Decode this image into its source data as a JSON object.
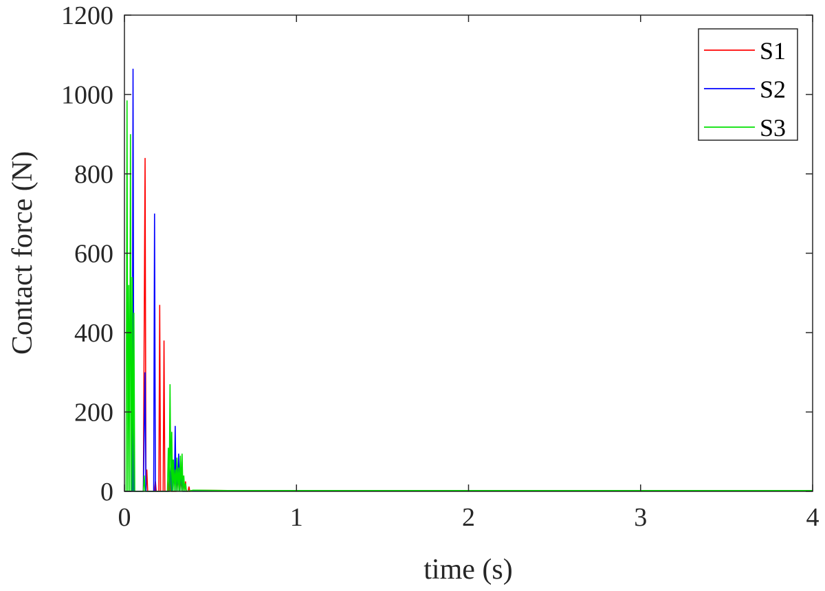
{
  "chart_data": {
    "type": "line",
    "title": "",
    "xlabel": "time (s)",
    "ylabel": "Contact force (N)",
    "xlim": [
      0,
      4
    ],
    "ylim": [
      0,
      1200
    ],
    "xticks": [
      0,
      1,
      2,
      3,
      4
    ],
    "yticks": [
      0,
      200,
      400,
      600,
      800,
      1000,
      1200
    ],
    "xtick_labels": [
      "0",
      "1",
      "2",
      "3",
      "4"
    ],
    "ytick_labels": [
      "0",
      "200",
      "400",
      "600",
      "800",
      "1000",
      "1200"
    ],
    "grid": false,
    "legend_position": "top-right",
    "series": [
      {
        "name": "S1",
        "color": "#ff0000",
        "x": [
          0,
          0.11,
          0.12,
          0.125,
          0.13,
          0.135,
          0.14,
          0.175,
          0.18,
          0.185,
          0.2,
          0.205,
          0.21,
          0.215,
          0.225,
          0.23,
          0.235,
          0.24,
          0.255,
          0.26,
          0.265,
          0.27,
          0.275,
          0.28,
          0.3,
          0.305,
          0.31,
          0.315,
          0.32,
          0.325,
          0.33,
          0.335,
          0.34,
          0.345,
          0.35,
          0.355,
          0.36,
          0.37,
          0.375,
          0.38,
          0.4,
          0.6,
          1.0,
          2.0,
          3.0,
          4.0
        ],
        "y": [
          0,
          0,
          840,
          0,
          55,
          0,
          0,
          0,
          25,
          0,
          0,
          470,
          0,
          0,
          0,
          380,
          0,
          0,
          0,
          45,
          0,
          50,
          0,
          0,
          0,
          50,
          0,
          60,
          0,
          45,
          0,
          40,
          0,
          30,
          0,
          25,
          0,
          0,
          12,
          0,
          3,
          2,
          2,
          2,
          2,
          2
        ]
      },
      {
        "name": "S2",
        "color": "#0000ff",
        "x": [
          0,
          0.045,
          0.05,
          0.055,
          0.06,
          0.11,
          0.12,
          0.125,
          0.13,
          0.17,
          0.175,
          0.18,
          0.185,
          0.19,
          0.26,
          0.27,
          0.275,
          0.28,
          0.29,
          0.295,
          0.3,
          0.305,
          0.31,
          0.315,
          0.32,
          0.325,
          0.33,
          0.335,
          0.34,
          0.35,
          0.4,
          1.0,
          2.0,
          3.0,
          4.0
        ],
        "y": [
          0,
          0,
          1065,
          0,
          0,
          0,
          300,
          0,
          0,
          0,
          700,
          0,
          0,
          0,
          0,
          70,
          0,
          80,
          0,
          165,
          0,
          60,
          0,
          95,
          0,
          75,
          0,
          55,
          0,
          0,
          2,
          2,
          2,
          2,
          2
        ]
      },
      {
        "name": "S3",
        "color": "#00e000",
        "x": [
          0,
          0.01,
          0.015,
          0.02,
          0.025,
          0.03,
          0.035,
          0.04,
          0.045,
          0.05,
          0.055,
          0.06,
          0.065,
          0.07,
          0.11,
          0.115,
          0.12,
          0.25,
          0.255,
          0.26,
          0.265,
          0.27,
          0.275,
          0.28,
          0.285,
          0.29,
          0.295,
          0.3,
          0.305,
          0.31,
          0.315,
          0.32,
          0.325,
          0.33,
          0.335,
          0.34,
          0.345,
          0.35,
          0.355,
          0.36,
          0.4,
          0.6,
          1.0,
          2.0,
          3.0,
          4.0
        ],
        "y": [
          0,
          0,
          985,
          0,
          520,
          0,
          900,
          0,
          540,
          0,
          450,
          0,
          0,
          0,
          0,
          40,
          0,
          0,
          110,
          0,
          270,
          0,
          150,
          0,
          80,
          0,
          55,
          0,
          85,
          0,
          60,
          0,
          90,
          0,
          95,
          0,
          40,
          0,
          20,
          0,
          3,
          2,
          2,
          2,
          2,
          2
        ]
      }
    ]
  }
}
